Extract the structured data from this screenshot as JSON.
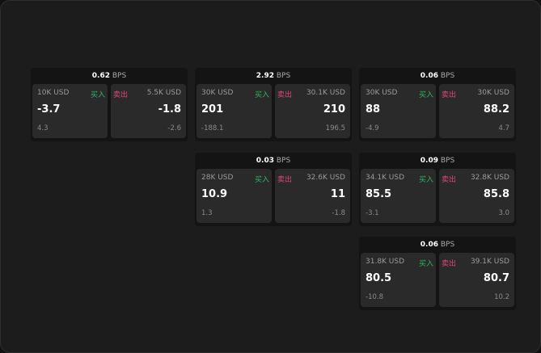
{
  "unit": "BPS",
  "buy_label": "买入",
  "sell_label": "卖出",
  "colors": {
    "buy": "#2fb567",
    "sell": "#e0457b"
  },
  "cards": [
    {
      "spread": "0.62",
      "bid_qty": "10K USD",
      "bid": "-3.7",
      "bid_chg": "4.3",
      "ask_qty": "5.5K USD",
      "ask": "-1.8",
      "ask_chg": "-2.6"
    },
    {
      "spread": "2.92",
      "bid_qty": "30K USD",
      "bid": "201",
      "bid_chg": "-188.1",
      "ask_qty": "30.1K USD",
      "ask": "210",
      "ask_chg": "196.5"
    },
    {
      "spread": "0.06",
      "bid_qty": "30K USD",
      "bid": "88",
      "bid_chg": "-4.9",
      "ask_qty": "30K USD",
      "ask": "88.2",
      "ask_chg": "4.7"
    },
    {
      "spread": "0.03",
      "bid_qty": "28K USD",
      "bid": "10.9",
      "bid_chg": "1.3",
      "ask_qty": "32.6K USD",
      "ask": "11",
      "ask_chg": "-1.8"
    },
    {
      "spread": "0.09",
      "bid_qty": "34.1K USD",
      "bid": "85.5",
      "bid_chg": "-3.1",
      "ask_qty": "32.8K USD",
      "ask": "85.8",
      "ask_chg": "3.0"
    },
    {
      "spread": "0.06",
      "bid_qty": "31.8K USD",
      "bid": "80.5",
      "bid_chg": "-10.8",
      "ask_qty": "39.1K USD",
      "ask": "80.7",
      "ask_chg": "10.2"
    }
  ]
}
